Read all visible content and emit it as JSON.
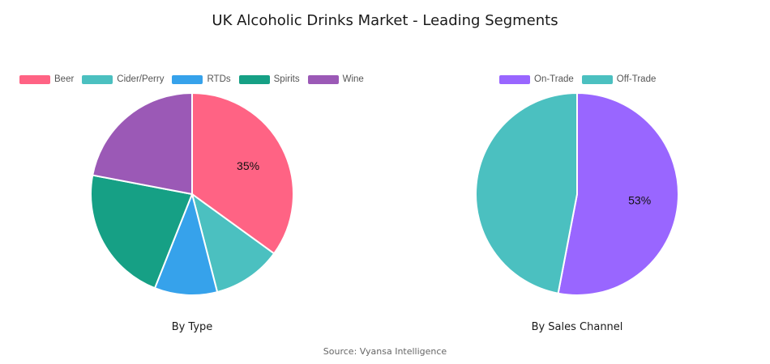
{
  "title": "UK Alcoholic Drinks Market - Leading Segments",
  "source": "Source: Vyansa Intelligence",
  "chart_data": [
    {
      "type": "pie",
      "caption": "By Type",
      "labels": [
        "Beer",
        "Cider/Perry",
        "RTDs",
        "Spirits",
        "Wine"
      ],
      "values": [
        35,
        11,
        10,
        22,
        22
      ],
      "colors": [
        "#ff6384",
        "#4bc0c0",
        "#36a2eb",
        "#16a085",
        "#9b59b6"
      ],
      "data_labels": [
        "35%",
        "",
        "",
        "",
        ""
      ],
      "legend": "top"
    },
    {
      "type": "pie",
      "caption": "By Sales Channel",
      "labels": [
        "On-Trade",
        "Off-Trade"
      ],
      "values": [
        53,
        47
      ],
      "colors": [
        "#9966ff",
        "#4bc0c0"
      ],
      "data_labels": [
        "53%",
        ""
      ],
      "legend": "top"
    }
  ]
}
